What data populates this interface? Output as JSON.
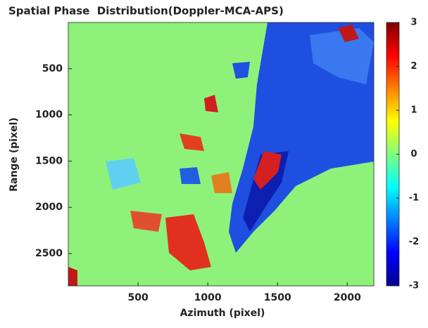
{
  "chart_data": {
    "type": "heatmap",
    "title": "Spatial Phase  Distribution(Doppler-MCA-APS)",
    "x_label": "Azimuth (pixel)",
    "y_label": "Range (pixel)",
    "xlim": [
      0,
      2190
    ],
    "xticks": [
      500,
      1000,
      1500,
      2000
    ],
    "ylim": [
      0,
      2850
    ],
    "yticks": [
      500,
      1000,
      1500,
      2000,
      2500
    ],
    "y_reversed": true,
    "colormap": "jet",
    "clim": [
      -3,
      3
    ],
    "cticks": [
      3,
      2,
      1,
      0,
      -1,
      -2,
      -3
    ],
    "background_color": "#8ef27a"
  }
}
